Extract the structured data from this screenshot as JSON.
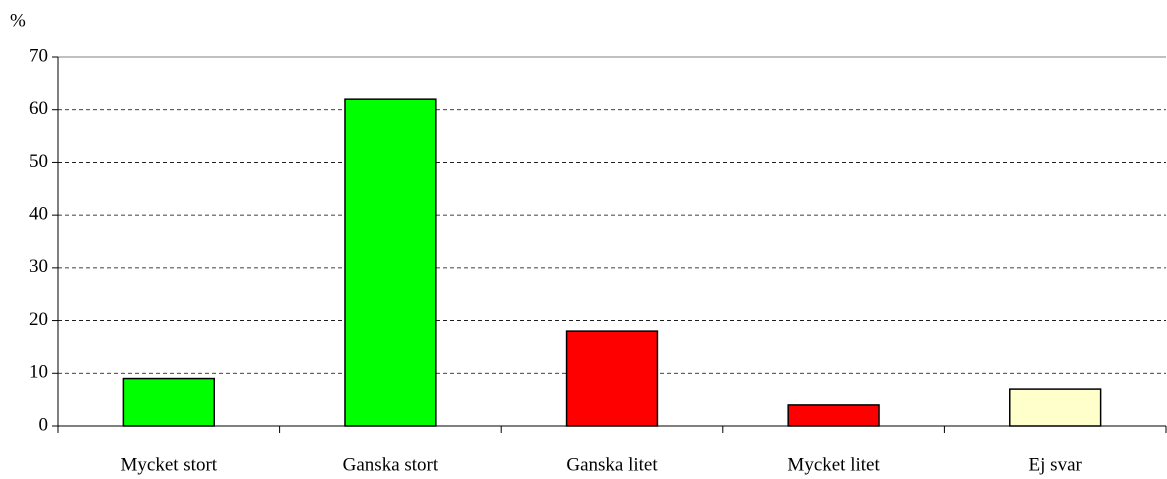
{
  "chart_data": {
    "type": "bar",
    "y_label": "%",
    "categories": [
      "Mycket stort",
      "Ganska stort",
      "Ganska litet",
      "Mycket litet",
      "Ej svar"
    ],
    "values": [
      9,
      62,
      18,
      4,
      7
    ],
    "colors": [
      "#00ff00",
      "#00ff00",
      "#ff0000",
      "#ff0000",
      "#ffffcc"
    ],
    "ylim": [
      0,
      70
    ],
    "yticks": [
      0,
      10,
      20,
      30,
      40,
      50,
      60,
      70
    ],
    "grid": true
  }
}
